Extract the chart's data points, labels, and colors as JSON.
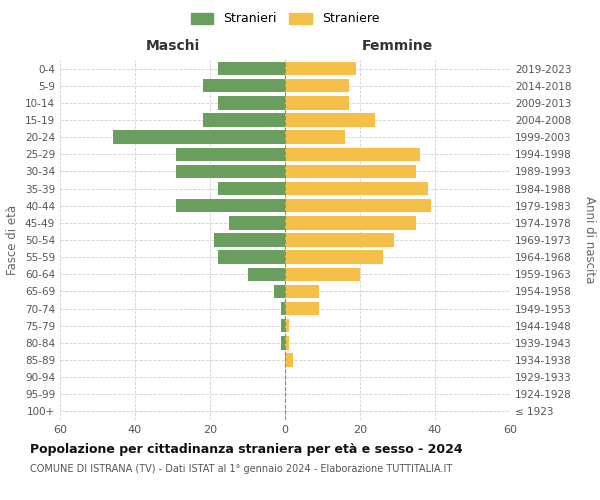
{
  "age_groups": [
    "100+",
    "95-99",
    "90-94",
    "85-89",
    "80-84",
    "75-79",
    "70-74",
    "65-69",
    "60-64",
    "55-59",
    "50-54",
    "45-49",
    "40-44",
    "35-39",
    "30-34",
    "25-29",
    "20-24",
    "15-19",
    "10-14",
    "5-9",
    "0-4"
  ],
  "birth_years": [
    "≤ 1923",
    "1924-1928",
    "1929-1933",
    "1934-1938",
    "1939-1943",
    "1944-1948",
    "1949-1953",
    "1954-1958",
    "1959-1963",
    "1964-1968",
    "1969-1973",
    "1974-1978",
    "1979-1983",
    "1984-1988",
    "1989-1993",
    "1994-1998",
    "1999-2003",
    "2004-2008",
    "2009-2013",
    "2014-2018",
    "2019-2023"
  ],
  "males": [
    0,
    0,
    0,
    0,
    1,
    1,
    1,
    3,
    10,
    18,
    19,
    15,
    29,
    18,
    29,
    29,
    46,
    22,
    18,
    22,
    18
  ],
  "females": [
    0,
    0,
    0,
    2,
    1,
    1,
    9,
    9,
    20,
    26,
    29,
    35,
    39,
    38,
    35,
    36,
    16,
    24,
    17,
    17,
    19
  ],
  "male_color": "#6a9e5e",
  "female_color": "#f5c04a",
  "background_color": "#ffffff",
  "grid_color": "#d0d0d0",
  "title": "Popolazione per cittadinanza straniera per età e sesso - 2024",
  "subtitle": "COMUNE DI ISTRANA (TV) - Dati ISTAT al 1° gennaio 2024 - Elaborazione TUTTITALIA.IT",
  "header_left": "Maschi",
  "header_right": "Femmine",
  "ylabel_left": "Fasce di età",
  "ylabel_right": "Anni di nascita",
  "legend_male": "Stranieri",
  "legend_female": "Straniere",
  "xlim": 60
}
